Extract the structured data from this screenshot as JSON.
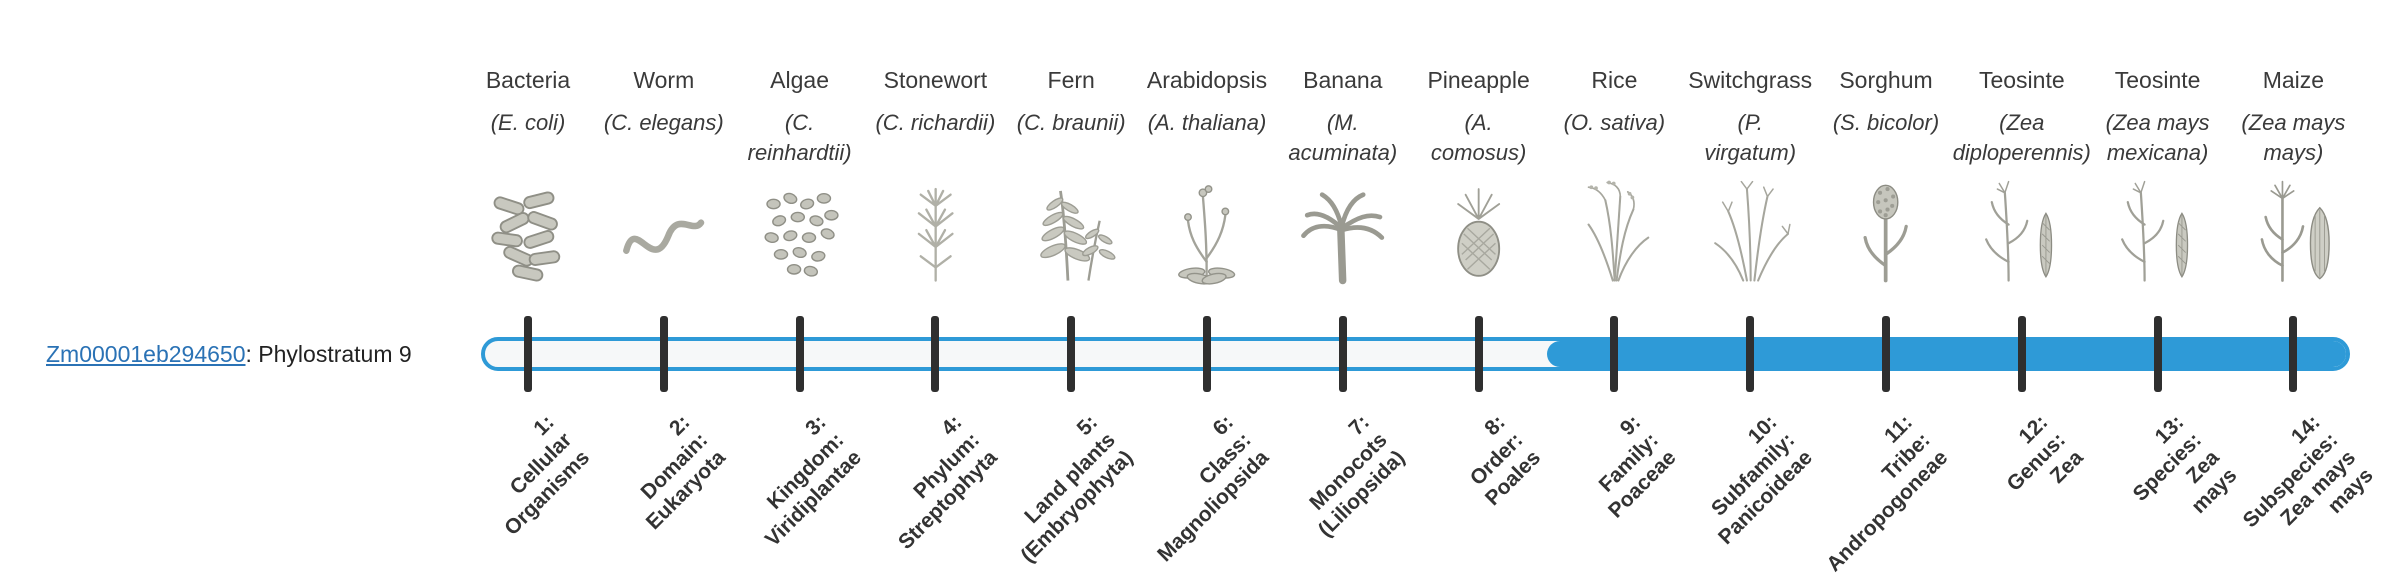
{
  "gene": {
    "id": "Zm00001eb294650",
    "suffix": ": Phylostratum 9",
    "phylostratum": 9
  },
  "colors": {
    "accent": "#2e9ad7",
    "track_background": "#f6f8f9",
    "tick": "#2f2f2f",
    "link": "#2a72b5"
  },
  "strata": [
    {
      "number": 1,
      "organism": "Bacteria",
      "species_lines": [
        "(E. coli)"
      ],
      "icon": "bacteria-icon",
      "stage_lines": [
        "1:",
        "Cellular",
        "Organisms"
      ]
    },
    {
      "number": 2,
      "organism": "Worm",
      "species_lines": [
        "(C. elegans)"
      ],
      "icon": "worm-icon",
      "stage_lines": [
        "2:",
        "Domain:",
        "Eukaryota"
      ]
    },
    {
      "number": 3,
      "organism": "Algae",
      "species_lines": [
        "(C.",
        "reinhardtii)"
      ],
      "icon": "algae-icon",
      "stage_lines": [
        "3:",
        "Kingdom:",
        "Viridiplantae"
      ]
    },
    {
      "number": 4,
      "organism": "Stonewort",
      "species_lines": [
        "(C. richardii)"
      ],
      "icon": "stonewort-icon",
      "stage_lines": [
        "4:",
        "Phylum:",
        "Streptophyta"
      ]
    },
    {
      "number": 5,
      "organism": "Fern",
      "species_lines": [
        "(C. braunii)"
      ],
      "icon": "fern-icon",
      "stage_lines": [
        "5:",
        "Land plants",
        "(Embryophyta)"
      ]
    },
    {
      "number": 6,
      "organism": "Arabidopsis",
      "species_lines": [
        "(A. thaliana)"
      ],
      "icon": "arabidopsis-icon",
      "stage_lines": [
        "6:",
        "Class:",
        "Magnoliopsida"
      ]
    },
    {
      "number": 7,
      "organism": "Banana",
      "species_lines": [
        "(M.",
        "acuminata)"
      ],
      "icon": "banana-icon",
      "stage_lines": [
        "7:",
        "Monocots",
        "(Liliopsida)"
      ]
    },
    {
      "number": 8,
      "organism": "Pineapple",
      "species_lines": [
        "(A.",
        "comosus)"
      ],
      "icon": "pineapple-icon",
      "stage_lines": [
        "8:",
        "Order:",
        "Poales"
      ]
    },
    {
      "number": 9,
      "organism": "Rice",
      "species_lines": [
        "(O. sativa)"
      ],
      "icon": "rice-icon",
      "stage_lines": [
        "9:",
        "Family:",
        "Poaceae"
      ]
    },
    {
      "number": 10,
      "organism": "Switchgrass",
      "species_lines": [
        "(P.",
        "virgatum)"
      ],
      "icon": "switchgrass-icon",
      "stage_lines": [
        "10:",
        "Subfamily:",
        "Panicoideae"
      ]
    },
    {
      "number": 11,
      "organism": "Sorghum",
      "species_lines": [
        "(S. bicolor)"
      ],
      "icon": "sorghum-icon",
      "stage_lines": [
        "11:",
        "Tribe:",
        "Andropogoneae"
      ]
    },
    {
      "number": 12,
      "organism": "Teosinte",
      "species_lines": [
        "(Zea",
        "diploperennis)"
      ],
      "icon": "teosinte-diploperennis-icon",
      "stage_lines": [
        "12:",
        "Genus:",
        "Zea"
      ]
    },
    {
      "number": 13,
      "organism": "Teosinte",
      "species_lines": [
        "(Zea mays",
        "mexicana)"
      ],
      "icon": "teosinte-mexicana-icon",
      "stage_lines": [
        "13:",
        "Species:",
        "Zea",
        "mays"
      ]
    },
    {
      "number": 14,
      "organism": "Maize",
      "species_lines": [
        "(Zea mays",
        "mays)"
      ],
      "icon": "maize-icon",
      "stage_lines": [
        "14:",
        "Subspecies:",
        "Zea mays",
        "mays"
      ]
    }
  ]
}
